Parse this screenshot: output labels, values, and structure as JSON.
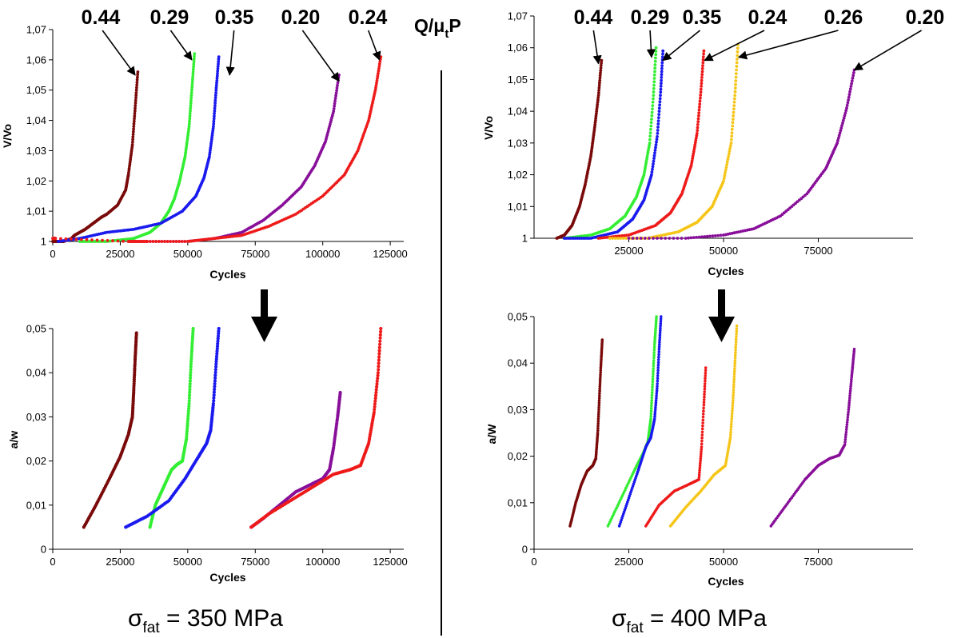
{
  "header": {
    "q_main": "Q/μ",
    "q_sub": "t",
    "q_tail": "P"
  },
  "captions": [
    {
      "sigma": "σ",
      "sub": "fat",
      "rest": " = 350 MPa"
    },
    {
      "sigma": "σ",
      "sub": "fat",
      "rest": " = 400 MPa"
    }
  ],
  "colors": {
    "0.44": "#7a0a0a",
    "0.29": "#33ee33",
    "0.35": "#1a1aee",
    "0.20": "#880f99",
    "0.24": "#ee1a1a",
    "0.26": "#f5c518"
  },
  "chart_data": [
    {
      "type": "scatter",
      "panel": "top-left",
      "xlabel": "Cycles",
      "ylabel": "V/Vo",
      "xlim": [
        0,
        130000
      ],
      "ylim": [
        1,
        1.07
      ],
      "xticks": [
        0,
        25000,
        50000,
        75000,
        100000,
        125000
      ],
      "xtick_labels": [
        "0",
        "25000",
        "50000",
        "75000",
        "100000",
        "125000"
      ],
      "yticks": [
        1,
        1.01,
        1.02,
        1.03,
        1.04,
        1.05,
        1.06,
        1.07
      ],
      "ytick_labels": [
        "1",
        "1,01",
        "1,02",
        "1,03",
        "1,04",
        "1,05",
        "1,06",
        "1,07"
      ],
      "series": [
        {
          "name": "0.44",
          "color": "0.44",
          "x": [
            0,
            1000,
            2000,
            3000,
            4000,
            7000,
            8000,
            10000,
            12000,
            15000,
            18000,
            20000,
            24000,
            27000,
            28000,
            29500,
            30500,
            31500
          ],
          "y": [
            1,
            1,
            1,
            1,
            1,
            1.001,
            1.002,
            1.003,
            1.004,
            1.006,
            1.008,
            1.009,
            1.012,
            1.017,
            1.022,
            1.032,
            1.044,
            1.056
          ]
        },
        {
          "name": "0.29",
          "color": "0.29",
          "x": [
            10000,
            20000,
            30000,
            36000,
            40000,
            43000,
            45000,
            47000,
            49000,
            50500,
            51500,
            52500
          ],
          "y": [
            1,
            1,
            1.001,
            1.003,
            1.006,
            1.01,
            1.014,
            1.02,
            1.028,
            1.038,
            1.05,
            1.062
          ]
        },
        {
          "name": "0.35",
          "color": "0.35",
          "x": [
            2000,
            10000,
            20000,
            30000,
            40000,
            48000,
            53000,
            56000,
            58000,
            59500,
            60500,
            61500
          ],
          "y": [
            1,
            1.001,
            1.003,
            1.004,
            1.006,
            1.01,
            1.015,
            1.021,
            1.028,
            1.038,
            1.05,
            1.061
          ]
        },
        {
          "name": "0.20",
          "color": "0.20",
          "x": [
            35000,
            50000,
            60000,
            70000,
            78000,
            85000,
            92000,
            97000,
            101000,
            104000,
            106000
          ],
          "y": [
            1,
            1,
            1.001,
            1.003,
            1.007,
            1.012,
            1.018,
            1.025,
            1.033,
            1.043,
            1.055
          ]
        },
        {
          "name": "0.24",
          "color": "0.24",
          "x": [
            0,
            1000,
            28000,
            31000,
            35000,
            50000,
            60000,
            70000,
            80000,
            90000,
            100000,
            108000,
            113000,
            117000,
            119500,
            121500
          ],
          "y": [
            1.001,
            1.001,
            1,
            1,
            1,
            1,
            1.001,
            1.002,
            1.005,
            1.009,
            1.015,
            1.022,
            1.03,
            1.04,
            1.05,
            1.061
          ]
        }
      ],
      "annotations": [
        {
          "text": "0.44",
          "points_to": [
            30500,
            1.055
          ]
        },
        {
          "text": "0.29",
          "points_to": [
            51500,
            1.06
          ]
        },
        {
          "text": "0.35",
          "points_to": [
            65500,
            1.055
          ]
        },
        {
          "text": "0.20",
          "points_to": [
            106000,
            1.053
          ]
        },
        {
          "text": "0.24",
          "points_to": [
            121000,
            1.06
          ]
        }
      ]
    },
    {
      "type": "scatter",
      "panel": "top-right",
      "xlabel": "Cycles",
      "ylabel": "V/Vo",
      "xlim": [
        0,
        100000
      ],
      "ylim": [
        1,
        1.07
      ],
      "xticks": [
        25000,
        50000,
        75000
      ],
      "xtick_labels": [
        "25000",
        "50000",
        "75000"
      ],
      "yticks": [
        1,
        1.01,
        1.02,
        1.03,
        1.04,
        1.05,
        1.06,
        1.07
      ],
      "ytick_labels": [
        "1",
        "1,01",
        "1,02",
        "1,03",
        "1,04",
        "1,05",
        "1,06",
        "1,07"
      ],
      "series": [
        {
          "name": "0.44",
          "color": "0.44",
          "x": [
            6000,
            8000,
            10000,
            12000,
            13500,
            15000,
            16000,
            17000,
            17800
          ],
          "y": [
            1,
            1.001,
            1.004,
            1.01,
            1.017,
            1.026,
            1.035,
            1.045,
            1.056
          ]
        },
        {
          "name": "0.29",
          "color": "0.29",
          "x": [
            8000,
            15000,
            20000,
            24000,
            27000,
            29000,
            30500,
            31500,
            32200
          ],
          "y": [
            1,
            1.001,
            1.003,
            1.007,
            1.013,
            1.02,
            1.03,
            1.045,
            1.06
          ]
        },
        {
          "name": "0.35",
          "color": "0.35",
          "x": [
            8000,
            15000,
            22000,
            26000,
            29000,
            31000,
            32500,
            33400,
            34000
          ],
          "y": [
            1,
            1,
            1.002,
            1.006,
            1.012,
            1.02,
            1.032,
            1.046,
            1.059
          ]
        },
        {
          "name": "0.24",
          "color": "0.24",
          "x": [
            17000,
            25000,
            32000,
            36000,
            39000,
            41500,
            43000,
            44000,
            44800
          ],
          "y": [
            1,
            1.001,
            1.004,
            1.008,
            1.014,
            1.023,
            1.033,
            1.046,
            1.059
          ]
        },
        {
          "name": "0.26",
          "color": "0.26",
          "x": [
            20000,
            30000,
            38000,
            43000,
            47000,
            50000,
            52000,
            53000,
            53800
          ],
          "y": [
            1,
            1,
            1.002,
            1.005,
            1.01,
            1.018,
            1.03,
            1.045,
            1.061
          ]
        },
        {
          "name": "0.20",
          "color": "0.20",
          "x": [
            25000,
            40000,
            50000,
            58000,
            65000,
            72000,
            77000,
            80000,
            82500,
            84500
          ],
          "y": [
            1,
            1,
            1.001,
            1.003,
            1.007,
            1.014,
            1.022,
            1.03,
            1.041,
            1.053
          ]
        }
      ],
      "annotations": [
        {
          "text": "0.44",
          "points_to": [
            17000,
            1.055
          ]
        },
        {
          "text": "0.29",
          "points_to": [
            31000,
            1.057
          ]
        },
        {
          "text": "0.35",
          "points_to": [
            34000,
            1.056
          ]
        },
        {
          "text": "0.24",
          "points_to": [
            45000,
            1.056
          ]
        },
        {
          "text": "0.26",
          "points_to": [
            54000,
            1.057
          ]
        },
        {
          "text": "0.20",
          "points_to": [
            84500,
            1.053
          ]
        }
      ]
    },
    {
      "type": "scatter",
      "panel": "bottom-left",
      "xlabel": "Cycles",
      "ylabel": "a/w",
      "xlim": [
        0,
        130000
      ],
      "ylim": [
        0,
        0.05
      ],
      "xticks": [
        0,
        25000,
        50000,
        75000,
        100000,
        125000
      ],
      "xtick_labels": [
        "0",
        "25000",
        "50000",
        "75000",
        "100000",
        "125000"
      ],
      "yticks": [
        0,
        0.01,
        0.02,
        0.03,
        0.04,
        0.05
      ],
      "ytick_labels": [
        "0",
        "0,01",
        "0,02",
        "0,03",
        "0,04",
        "0,05"
      ],
      "series": [
        {
          "name": "0.44",
          "color": "0.44",
          "x": [
            11500,
            16000,
            21000,
            25000,
            28000,
            29500,
            30000,
            30500,
            31000
          ],
          "y": [
            0.005,
            0.01,
            0.016,
            0.021,
            0.026,
            0.03,
            0.036,
            0.043,
            0.049
          ]
        },
        {
          "name": "0.29",
          "color": "0.29",
          "x": [
            36000,
            38000,
            41000,
            44000,
            46000,
            48000,
            49500,
            50500,
            51200,
            52000
          ],
          "y": [
            0.005,
            0.01,
            0.014,
            0.018,
            0.0192,
            0.02,
            0.025,
            0.033,
            0.042,
            0.05
          ]
        },
        {
          "name": "0.35",
          "color": "0.35",
          "x": [
            27000,
            35000,
            43000,
            49000,
            54000,
            57000,
            58500,
            59500,
            60500,
            61500
          ],
          "y": [
            0.005,
            0.0075,
            0.011,
            0.016,
            0.021,
            0.024,
            0.027,
            0.033,
            0.042,
            0.05
          ]
        },
        {
          "name": "0.20",
          "color": "0.20",
          "x": [
            73500,
            78000,
            84000,
            90000,
            96000,
            100000,
            102500,
            104000,
            105500,
            106500
          ],
          "y": [
            0.005,
            0.007,
            0.01,
            0.013,
            0.0148,
            0.016,
            0.018,
            0.023,
            0.03,
            0.0355
          ]
        },
        {
          "name": "0.24",
          "color": "0.24",
          "x": [
            73500,
            80000,
            88000,
            96000,
            104000,
            110000,
            114000,
            117000,
            119000,
            120500,
            121500
          ],
          "y": [
            0.005,
            0.008,
            0.011,
            0.014,
            0.017,
            0.018,
            0.019,
            0.024,
            0.031,
            0.04,
            0.05
          ]
        }
      ]
    },
    {
      "type": "scatter",
      "panel": "bottom-right",
      "xlabel": "Cycles",
      "ylabel": "a/W",
      "xlim": [
        0,
        100000
      ],
      "ylim": [
        0,
        0.05
      ],
      "xticks": [
        0,
        25000,
        50000,
        75000
      ],
      "xtick_labels": [
        "0",
        "25000",
        "50000",
        "75000"
      ],
      "yticks": [
        0,
        0.01,
        0.02,
        0.03,
        0.04,
        0.05
      ],
      "ytick_labels": [
        "0",
        "0,01",
        "0,02",
        "0,03",
        "0,04",
        "0,05"
      ],
      "series": [
        {
          "name": "0.44",
          "color": "0.44",
          "x": [
            9500,
            11000,
            12500,
            14000,
            15500,
            16300,
            16800,
            17200,
            17600,
            18000
          ],
          "y": [
            0.005,
            0.01,
            0.014,
            0.0168,
            0.018,
            0.0195,
            0.025,
            0.032,
            0.039,
            0.045
          ]
        },
        {
          "name": "0.29",
          "color": "0.29",
          "x": [
            19500,
            23000,
            26500,
            29000,
            30000,
            30800,
            31300,
            31800,
            32300
          ],
          "y": [
            0.005,
            0.011,
            0.017,
            0.021,
            0.023,
            0.028,
            0.036,
            0.044,
            0.05
          ]
        },
        {
          "name": "0.35",
          "color": "0.35",
          "x": [
            22500,
            25000,
            27500,
            29500,
            30800,
            31800,
            32500,
            33000,
            33500
          ],
          "y": [
            0.005,
            0.011,
            0.017,
            0.022,
            0.024,
            0.028,
            0.035,
            0.043,
            0.05
          ]
        },
        {
          "name": "0.24",
          "color": "0.24",
          "x": [
            29500,
            33000,
            37000,
            41000,
            43500,
            44200,
            44800,
            45300
          ],
          "y": [
            0.005,
            0.0095,
            0.0125,
            0.014,
            0.015,
            0.022,
            0.031,
            0.039
          ]
        },
        {
          "name": "0.26",
          "color": "0.26",
          "x": [
            36000,
            40000,
            44000,
            47500,
            50500,
            51800,
            52500,
            53000,
            53500
          ],
          "y": [
            0.005,
            0.009,
            0.0125,
            0.016,
            0.018,
            0.024,
            0.032,
            0.04,
            0.048
          ]
        },
        {
          "name": "0.20",
          "color": "0.20",
          "x": [
            62500,
            67000,
            71500,
            75000,
            78000,
            80500,
            82000,
            83000,
            83800,
            84500
          ],
          "y": [
            0.005,
            0.01,
            0.015,
            0.018,
            0.0195,
            0.0202,
            0.0225,
            0.03,
            0.037,
            0.043
          ]
        }
      ]
    }
  ]
}
